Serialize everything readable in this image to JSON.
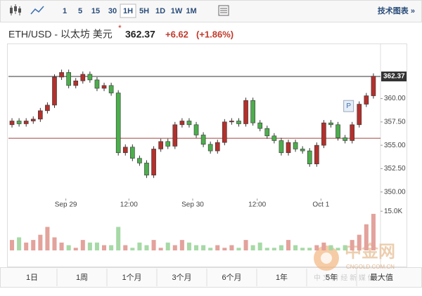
{
  "toolbar": {
    "intervals": [
      "1",
      "5",
      "15",
      "30",
      "1H",
      "5H",
      "1D",
      "1W",
      "1M"
    ],
    "active_interval": 4,
    "link": "技术图表 »"
  },
  "header": {
    "symbol": "ETH/USD - 以太坊 美元",
    "star": "*",
    "price": "362.37",
    "change": "+6.62",
    "change_pct": "(+1.86%)"
  },
  "ranges": [
    "1日",
    "1周",
    "1个月",
    "3个月",
    "6个月",
    "1年",
    "5年",
    "最大值"
  ],
  "watermark": {
    "name": "中金网",
    "domain": "CNGOLD.COM.CN",
    "slogan": "中 文 财 经 新 媒 体"
  },
  "chart_data": {
    "type": "candlestick",
    "up_color": "#b3302c",
    "down_color": "#4cae4c",
    "up_volume_color": "#e3a29c",
    "down_volume_color": "#a6d9a6",
    "xlim": [
      -0.5,
      52
    ],
    "xticks": [
      {
        "value": 7.6,
        "label": "Sep 29"
      },
      {
        "value": 16.5,
        "label": "12:00"
      },
      {
        "value": 25.5,
        "label": "Sep 30"
      },
      {
        "value": 34.6,
        "label": "12:00"
      },
      {
        "value": 43.6,
        "label": "Oct 1"
      }
    ],
    "ylim": [
      349.3,
      365.9
    ],
    "yticks": [
      {
        "value": 350,
        "label": "350.00"
      },
      {
        "value": 352.5,
        "label": "352.50"
      },
      {
        "value": 355,
        "label": "355.00"
      },
      {
        "value": 357.5,
        "label": "357.50"
      },
      {
        "value": 360,
        "label": "360.00"
      }
    ],
    "last_price": {
      "value": 362.37,
      "label": "362.37"
    },
    "reference_line": 355.75,
    "marker": {
      "index": 47.5,
      "value": 359.2,
      "label": "P"
    },
    "open": [
      357.2,
      357.6,
      357.3,
      357.6,
      357.8,
      358.7,
      359.3,
      362.3,
      362.8,
      361.4,
      361.9,
      362.6,
      362.0,
      361.1,
      361.4,
      360.6,
      354.2,
      354.8,
      353.6,
      353.1,
      351.8,
      354.6,
      355.4,
      354.9,
      357.2,
      357.6,
      357.2,
      356.1,
      355.1,
      354.4,
      355.3,
      357.5,
      357.6,
      357.3,
      359.8,
      357.4,
      356.8,
      356.0,
      355.5,
      354.2,
      355.3,
      354.6,
      354.4,
      353.0,
      355.0,
      357.4,
      357.2,
      355.8,
      355.5,
      357.2,
      359.4,
      360.3
    ],
    "high": [
      357.9,
      357.9,
      357.9,
      358.1,
      359.0,
      359.6,
      362.6,
      363.1,
      363.1,
      362.2,
      362.9,
      362.9,
      362.3,
      361.7,
      361.7,
      360.9,
      355.1,
      355.1,
      353.9,
      353.4,
      354.9,
      355.7,
      355.7,
      357.5,
      357.9,
      357.9,
      357.5,
      356.4,
      355.4,
      355.6,
      357.8,
      357.9,
      357.9,
      360.1,
      360.1,
      357.7,
      357.1,
      356.3,
      355.8,
      355.6,
      355.6,
      354.9,
      354.7,
      355.3,
      357.7,
      357.7,
      357.5,
      356.1,
      357.5,
      359.7,
      360.6,
      362.7
    ],
    "low": [
      356.9,
      357.0,
      357.0,
      357.3,
      357.5,
      358.4,
      359.0,
      362.0,
      361.1,
      361.1,
      361.6,
      361.7,
      360.8,
      360.8,
      360.3,
      353.9,
      353.9,
      353.3,
      352.8,
      351.5,
      351.5,
      354.3,
      354.6,
      354.6,
      356.9,
      356.9,
      355.8,
      354.8,
      354.1,
      354.1,
      355.0,
      357.2,
      357.0,
      357.0,
      357.1,
      356.5,
      355.7,
      355.2,
      353.9,
      353.9,
      354.3,
      354.1,
      352.7,
      352.7,
      354.7,
      356.9,
      355.5,
      355.2,
      355.2,
      356.9,
      359.1,
      360.0
    ],
    "close": [
      357.6,
      357.3,
      357.6,
      357.8,
      358.7,
      359.3,
      362.3,
      362.8,
      361.4,
      361.9,
      362.6,
      362.0,
      361.1,
      361.4,
      360.6,
      354.2,
      354.8,
      353.6,
      353.1,
      351.8,
      354.6,
      355.4,
      354.9,
      357.2,
      357.6,
      357.2,
      356.1,
      355.1,
      354.4,
      355.3,
      357.5,
      357.6,
      357.3,
      359.8,
      357.4,
      356.8,
      356.0,
      355.5,
      354.2,
      355.3,
      354.6,
      354.4,
      353.0,
      355.0,
      357.4,
      357.2,
      355.8,
      355.5,
      357.2,
      359.4,
      360.3,
      362.4
    ],
    "volume": [
      4,
      5,
      3,
      4,
      6,
      9,
      5,
      3,
      2,
      1,
      4,
      3,
      3,
      2,
      2,
      9,
      2,
      1,
      3,
      2,
      4,
      1,
      3,
      2,
      4,
      3,
      2,
      2,
      1,
      2,
      1,
      2,
      1,
      4,
      2,
      3,
      1,
      1,
      2,
      4,
      2,
      1,
      1,
      2,
      3,
      2,
      1,
      2,
      4,
      6,
      10,
      14
    ],
    "volume_ylim": [
      0,
      18
    ],
    "volume_yticks": [
      {
        "value": 15,
        "label": "15.0K"
      }
    ]
  }
}
